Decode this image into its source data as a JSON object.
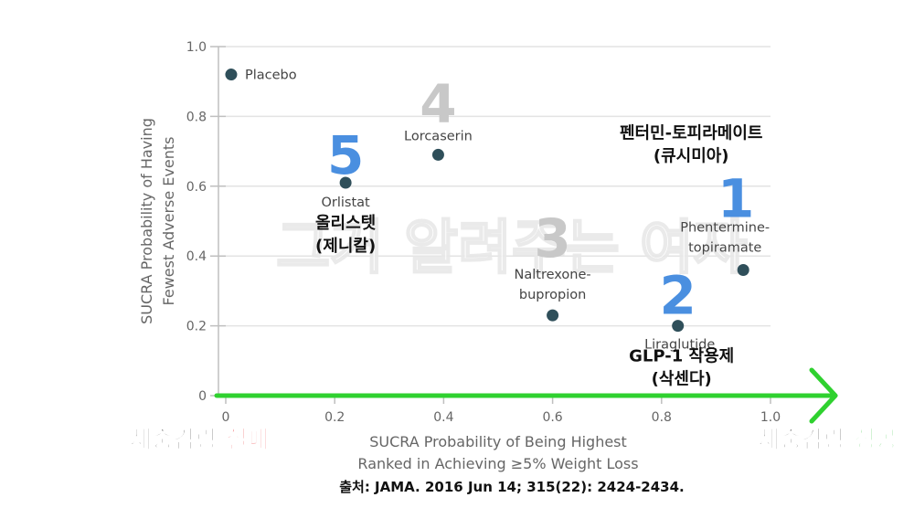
{
  "chart_data": {
    "type": "scatter",
    "xlabel": [
      "SUCRA Probability of Being Highest",
      "Ranked in Achieving ≥5% Weight Loss"
    ],
    "ylabel": [
      "SUCRA Probability of Having",
      "Fewest Adverse Events"
    ],
    "xlim": [
      0,
      1.0
    ],
    "ylim": [
      0,
      1.0
    ],
    "x_ticks": [
      "0",
      "0.2",
      "0.4",
      "0.6",
      "0.8",
      "1.0"
    ],
    "y_ticks": [
      "0",
      "0.2",
      "0.4",
      "0.6",
      "0.8",
      "1.0"
    ],
    "grid": "horizontal",
    "marker_color": "#2f4f5a",
    "points": [
      {
        "label": "Placebo",
        "x": 0.01,
        "y": 0.92,
        "rank": "",
        "korean": []
      },
      {
        "label": "Lorcaserin",
        "x": 0.39,
        "y": 0.69,
        "rank": "4",
        "korean": []
      },
      {
        "label": "Orlistat",
        "x": 0.22,
        "y": 0.61,
        "rank": "5",
        "korean": [
          "올리스텟",
          "(제니칼)"
        ]
      },
      {
        "label": "Naltrexone-\nbupropion",
        "x": 0.6,
        "y": 0.23,
        "rank": "3",
        "korean": []
      },
      {
        "label": "Liraglutide",
        "x": 0.83,
        "y": 0.2,
        "rank": "2",
        "korean": [
          "GLP-1 작용제",
          "(삭센다)"
        ]
      },
      {
        "label": "Phentermine-\ntopiramate",
        "x": 0.95,
        "y": 0.36,
        "rank": "1",
        "korean": [
          "펜터민-토피라메이트",
          "(큐시미아)"
        ]
      }
    ]
  },
  "rank_colors": {
    "blue": "#4a8fe0",
    "gray": "#c8c8c8"
  },
  "arrow_color": "#2fd12f",
  "watermark": "그거 알려주는 여자",
  "bottom_left": {
    "prefix": "체중감량 ",
    "emph": "실패",
    "emph_color": "#e8181e"
  },
  "bottom_right": {
    "prefix": "체중감량 ",
    "emph": "성공",
    "emph_color": "#2fc43a"
  },
  "source_text": "출처: JAMA. 2016 Jun 14; 315(22): 2424-2434."
}
